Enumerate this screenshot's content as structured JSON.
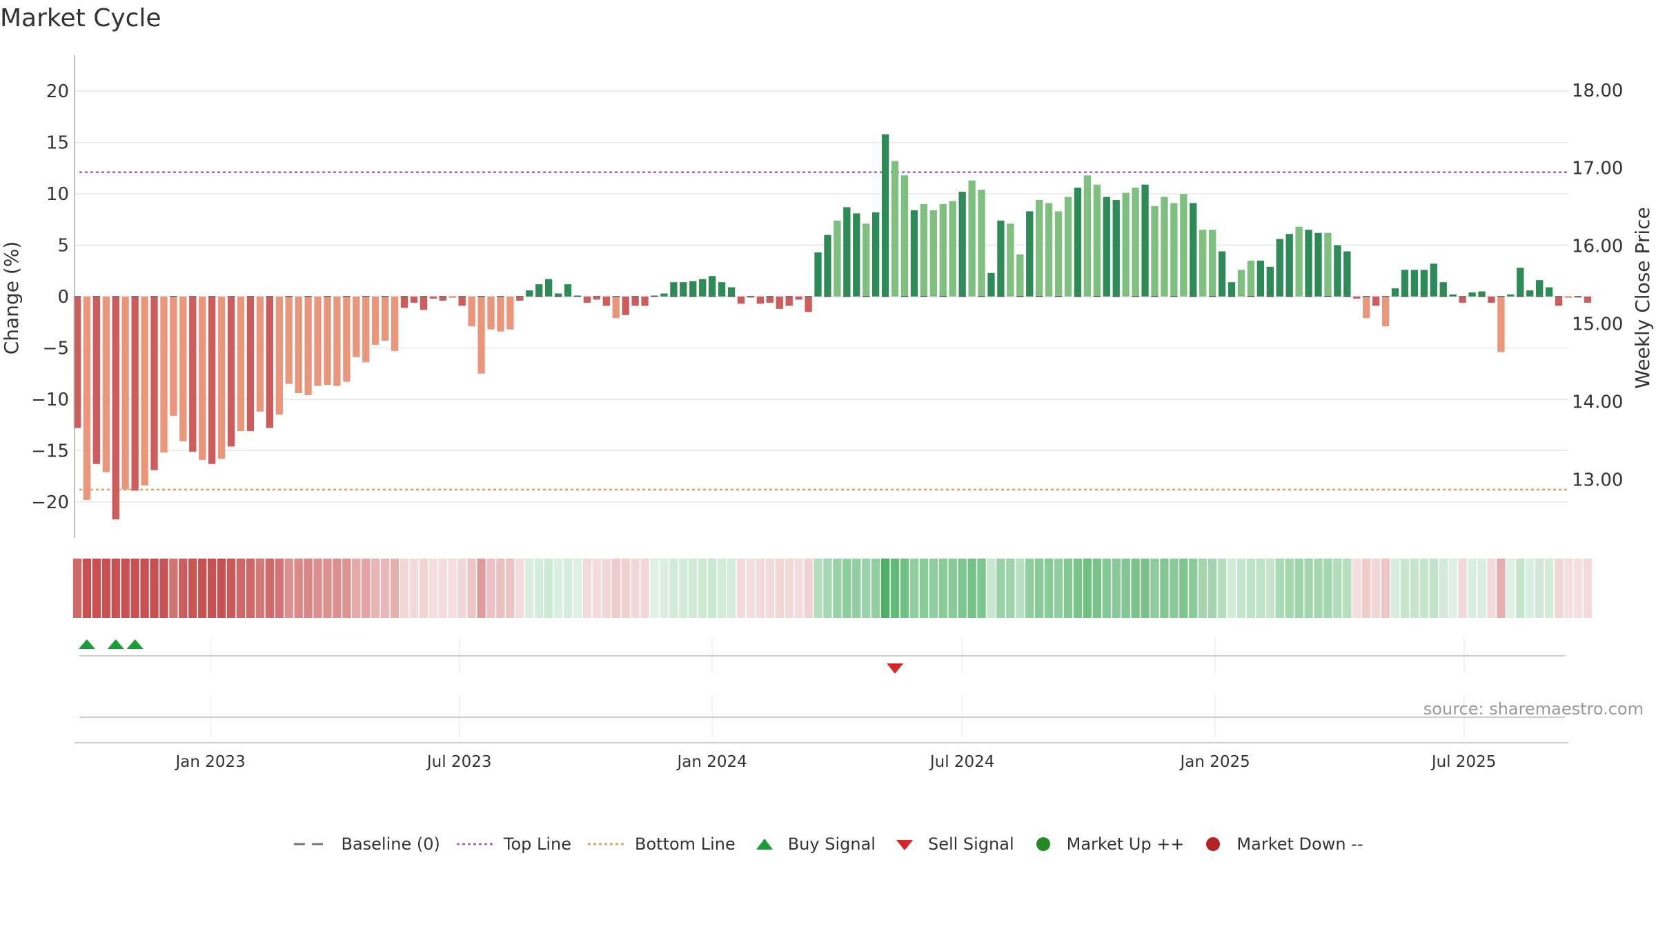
{
  "chart_data": {
    "type": "bar",
    "title": "Market Cycle",
    "ylabel": "Change (%)",
    "y2label": "Weekly Close Price",
    "ylim": [
      -23.5,
      23.5
    ],
    "y2lim": [
      12.25,
      18.45
    ],
    "yticks": [
      20,
      15,
      10,
      5,
      0,
      -5,
      -10,
      -15,
      -20
    ],
    "ytick_labels": [
      "20",
      "15",
      "10",
      "5",
      "0",
      "−5",
      "−10",
      "−15",
      "−20"
    ],
    "y2ticks": [
      18,
      17,
      16,
      15,
      14,
      13
    ],
    "y2tick_labels": [
      "18.00",
      "17.00",
      "16.00",
      "15.00",
      "14.00",
      "13.00"
    ],
    "x_start": "2022-09-26",
    "x_step_days": 7,
    "xlim": [
      "2022-09-24",
      "2025-09-15"
    ],
    "xticks": [
      "2023-01-01",
      "2023-07-01",
      "2024-01-01",
      "2024-07-01",
      "2025-01-01",
      "2025-07-01"
    ],
    "xtick_labels": [
      "Jan 2023",
      "Jul 2023",
      "Jan 2024",
      "Jul 2024",
      "Jan 2025",
      "Jul 2025"
    ],
    "top_line": 12.1,
    "bottom_line": -18.8,
    "grid": true,
    "legend_position": "bottom-center",
    "values": [
      -12.8,
      -19.8,
      -16.3,
      -17.1,
      -21.7,
      -18.8,
      -18.9,
      -18.4,
      -16.9,
      -15.2,
      -11.6,
      -14.1,
      -15.1,
      -15.9,
      -16.3,
      -15.8,
      -14.6,
      -13.1,
      -13.1,
      -11.2,
      -12.8,
      -11.5,
      -8.5,
      -9.4,
      -9.6,
      -8.7,
      -8.6,
      -8.7,
      -8.3,
      -5.9,
      -6.4,
      -4.7,
      -4.3,
      -5.3,
      -1.1,
      -0.6,
      -1.3,
      -0.2,
      -0.4,
      -0.1,
      -0.9,
      -2.9,
      -7.5,
      -3.2,
      -3.4,
      -3.2,
      -0.4,
      0.6,
      1.2,
      1.7,
      0.3,
      1.2,
      0.1,
      -0.6,
      -0.3,
      -0.9,
      -2.1,
      -1.8,
      -0.9,
      -0.9,
      0.1,
      0.3,
      1.4,
      1.4,
      1.5,
      1.7,
      2.0,
      1.4,
      0.9,
      -0.7,
      -0.1,
      -0.7,
      -0.6,
      -1.2,
      -0.9,
      -0.3,
      -1.5,
      4.3,
      6.0,
      7.4,
      8.7,
      8.1,
      7.1,
      8.2,
      15.8,
      13.2,
      11.8,
      8.4,
      9.0,
      8.4,
      9.0,
      9.3,
      10.2,
      11.3,
      10.4,
      2.3,
      7.4,
      7.1,
      4.1,
      8.3,
      9.4,
      9.1,
      8.3,
      9.7,
      10.6,
      11.8,
      10.9,
      9.7,
      9.4,
      10.1,
      10.6,
      10.9,
      8.8,
      9.7,
      9.1,
      10.0,
      9.1,
      6.5,
      6.5,
      4.4,
      1.4,
      2.6,
      3.5,
      3.5,
      2.9,
      5.6,
      6.1,
      6.8,
      6.5,
      6.2,
      6.2,
      5.0,
      4.4,
      -0.2,
      -2.1,
      -0.9,
      -2.9,
      0.8,
      2.6,
      2.6,
      2.6,
      3.2,
      1.4,
      0.2,
      -0.6,
      0.4,
      0.5,
      -0.6,
      -5.4,
      0.2,
      2.8,
      0.6,
      1.6,
      0.9,
      -0.9,
      -0.1,
      -0.1,
      -0.6
    ],
    "price_band": {
      "type": "heatmap",
      "values": "weekly change (same series as bars)"
    },
    "buy_signals": [
      "2022-10-03",
      "2022-10-24",
      "2022-11-07"
    ],
    "sell_signals": [
      "2024-05-13"
    ],
    "market_up_points": [],
    "market_down_points": [],
    "colors": {
      "down_strong": "#cd5c5c",
      "down_weak": "#e9967a",
      "up_strong": "#2e8b57",
      "up_weak": "#7fbf7f",
      "top_line": "#9966cc",
      "bottom_line": "#e8a060",
      "buy": "#1a9c3a",
      "sell": "#d62728",
      "market_up": "#228b22",
      "market_down": "#b22222",
      "baseline": "#777777"
    }
  },
  "legend": {
    "baseline": "Baseline (0)",
    "top_line": "Top Line",
    "bottom_line": "Bottom Line",
    "buy_signal": "Buy Signal",
    "sell_signal": "Sell Signal",
    "market_up": "Market Up ++",
    "market_down": "Market Down --"
  },
  "source": "source: sharemaestro.com"
}
